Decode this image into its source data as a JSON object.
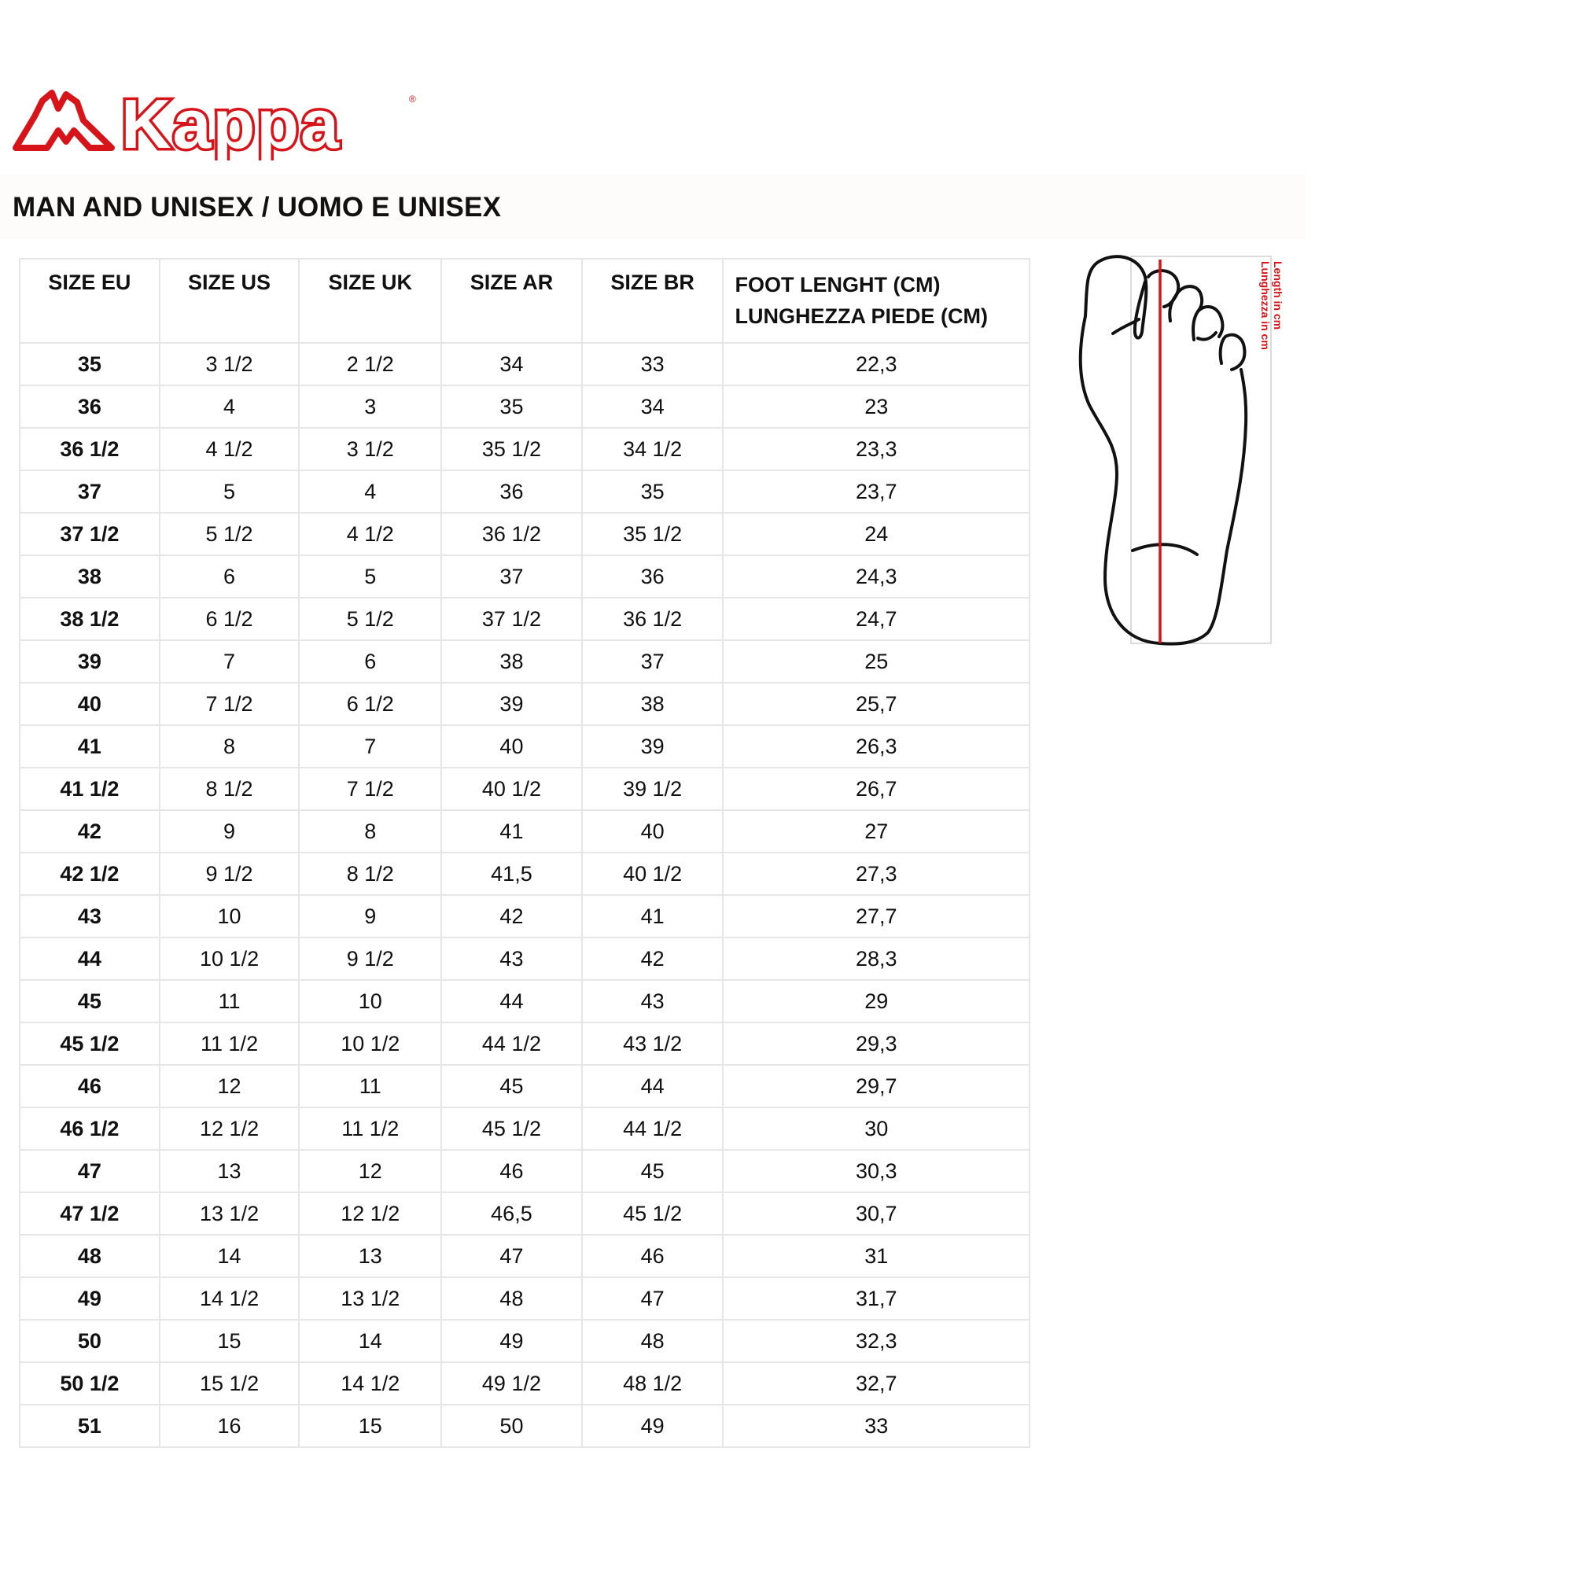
{
  "logo": {
    "text": "Kappa",
    "color": "#d7141a"
  },
  "title": "MAN AND UNISEX / UOMO E UNISEX",
  "table": {
    "headers": [
      "SIZE EU",
      "SIZE US",
      "SIZE UK",
      "SIZE AR",
      "SIZE BR",
      "FOOT LENGHT (CM)",
      "LUNGHEZZA PIEDE (CM)"
    ],
    "rows": [
      [
        "35",
        "3 1/2",
        "2 1/2",
        "34",
        "33",
        "22,3"
      ],
      [
        "36",
        "4",
        "3",
        "35",
        "34",
        "23"
      ],
      [
        "36 1/2",
        "4 1/2",
        "3 1/2",
        "35 1/2",
        "34 1/2",
        "23,3"
      ],
      [
        "37",
        "5",
        "4",
        "36",
        "35",
        "23,7"
      ],
      [
        "37 1/2",
        "5 1/2",
        "4 1/2",
        "36 1/2",
        "35 1/2",
        "24"
      ],
      [
        "38",
        "6",
        "5",
        "37",
        "36",
        "24,3"
      ],
      [
        "38 1/2",
        "6 1/2",
        "5 1/2",
        "37 1/2",
        "36 1/2",
        "24,7"
      ],
      [
        "39",
        "7",
        "6",
        "38",
        "37",
        "25"
      ],
      [
        "40",
        "7 1/2",
        "6 1/2",
        "39",
        "38",
        "25,7"
      ],
      [
        "41",
        "8",
        "7",
        "40",
        "39",
        "26,3"
      ],
      [
        "41 1/2",
        "8 1/2",
        "7 1/2",
        "40 1/2",
        "39 1/2",
        "26,7"
      ],
      [
        "42",
        "9",
        "8",
        "41",
        "40",
        "27"
      ],
      [
        "42 1/2",
        "9 1/2",
        "8 1/2",
        "41,5",
        "40 1/2",
        "27,3"
      ],
      [
        "43",
        "10",
        "9",
        "42",
        "41",
        "27,7"
      ],
      [
        "44",
        "10 1/2",
        "9 1/2",
        "43",
        "42",
        "28,3"
      ],
      [
        "45",
        "11",
        "10",
        "44",
        "43",
        "29"
      ],
      [
        "45 1/2",
        "11 1/2",
        "10 1/2",
        "44 1/2",
        "43 1/2",
        "29,3"
      ],
      [
        "46",
        "12",
        "11",
        "45",
        "44",
        "29,7"
      ],
      [
        "46 1/2",
        "12 1/2",
        "11 1/2",
        "45 1/2",
        "44 1/2",
        "30"
      ],
      [
        "47",
        "13",
        "12",
        "46",
        "45",
        "30,3"
      ],
      [
        "47 1/2",
        "13 1/2",
        "12 1/2",
        "46,5",
        "45 1/2",
        "30,7"
      ],
      [
        "48",
        "14",
        "13",
        "47",
        "46",
        "31"
      ],
      [
        "49",
        "14 1/2",
        "13 1/2",
        "48",
        "47",
        "31,7"
      ],
      [
        "50",
        "15",
        "14",
        "49",
        "48",
        "32,3"
      ],
      [
        "50 1/2",
        "15 1/2",
        "14 1/2",
        "49 1/2",
        "48 1/2",
        "32,7"
      ],
      [
        "51",
        "16",
        "15",
        "50",
        "49",
        "33"
      ]
    ]
  },
  "diagram": {
    "label_en": "Length in cm",
    "label_it": "Lunghezza in cm",
    "accent": "#d7141a"
  }
}
